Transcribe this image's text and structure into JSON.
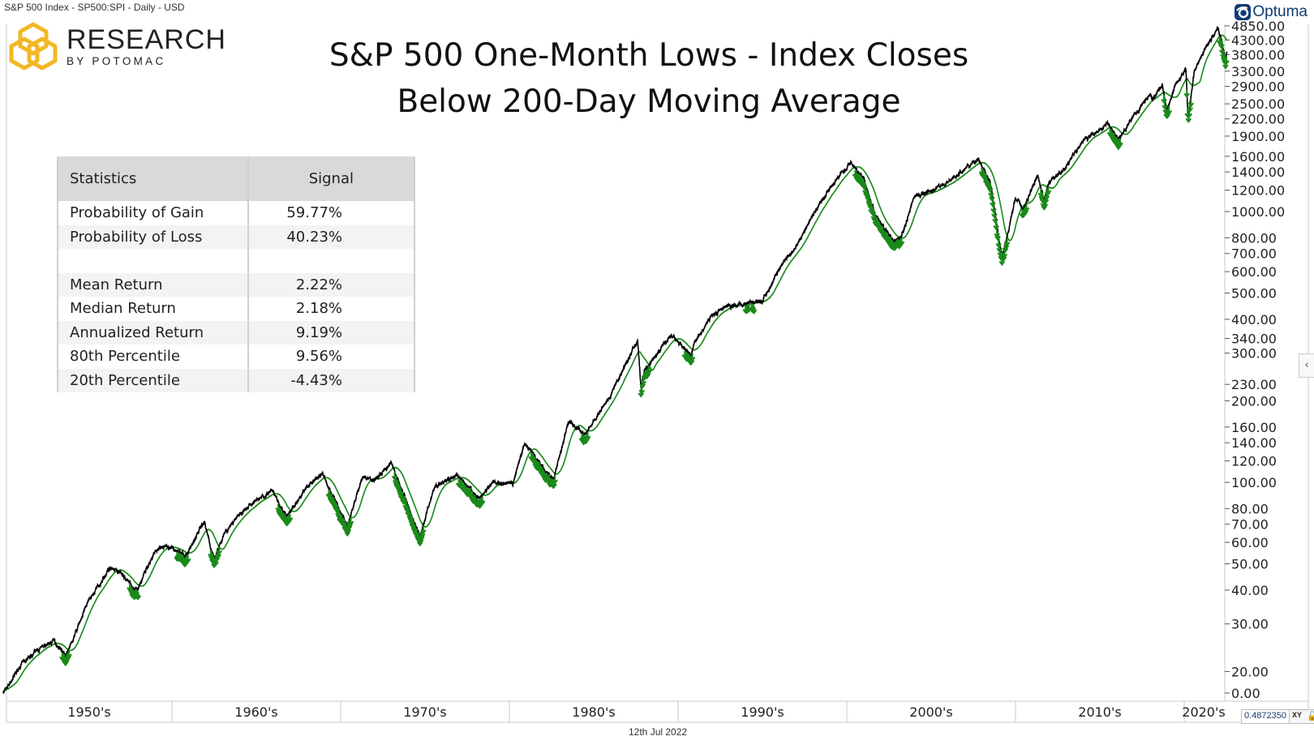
{
  "header": {
    "instrument": "S&P 500 Index  - SP500:SPI - Daily - USD",
    "date_label": "12th Jul 2022",
    "coord_value": "0.4872350",
    "coord_mode": "XY"
  },
  "brand": {
    "name": "RESEARCH",
    "sub": "BY POTOMAC",
    "platform": "Optuma",
    "logo_color": "#F2B824",
    "platform_color": "#0e3a75"
  },
  "chart_data": {
    "type": "line",
    "title_lines": [
      "S&P 500 One-Month Lows - Index Closes",
      "Below 200-Day Moving Average"
    ],
    "yscale": "log",
    "ylim": [
      16.6,
      5000
    ],
    "y_ticks": [
      4850,
      4300,
      3800,
      3300,
      2900,
      2500,
      2200,
      1900,
      1600,
      1400,
      1200,
      1000,
      800,
      700,
      600,
      500,
      400,
      340,
      300,
      230,
      200,
      160,
      140,
      120,
      100,
      80,
      70,
      60,
      50,
      40,
      30,
      20
    ],
    "y_tick_labels": [
      "4850.00",
      "4300.00",
      "3800.00",
      "3300.00",
      "2900.00",
      "2500.00",
      "2200.00",
      "1900.00",
      "1600.00",
      "1400.00",
      "1200.00",
      "1000.00",
      "800.00",
      "700.00",
      "600.00",
      "500.00",
      "400.00",
      "340.00",
      "300.00",
      "230.00",
      "200.00",
      "160.00",
      "140.00",
      "120.00",
      "100.00",
      "80.00",
      "70.00",
      "60.00",
      "50.00",
      "40.00",
      "30.00",
      "20.00"
    ],
    "y_floor_label": "0.00",
    "x_categories": [
      "1950's",
      "1960's",
      "1970's",
      "1980's",
      "1990's",
      "2000's",
      "2010's",
      "2020's"
    ],
    "xlim": [
      1950,
      2022.53
    ],
    "grid": false,
    "colors": {
      "price": "#000000",
      "moving_average": "#1a8a1a",
      "signal": "#1a8a1a"
    },
    "price_series": [
      [
        1950.0,
        16.7
      ],
      [
        1950.5,
        18.5
      ],
      [
        1951,
        21
      ],
      [
        1952,
        24
      ],
      [
        1953,
        26
      ],
      [
        1953.7,
        23
      ],
      [
        1954,
        25
      ],
      [
        1955,
        36
      ],
      [
        1956.3,
        48
      ],
      [
        1957,
        46
      ],
      [
        1957.8,
        40
      ],
      [
        1958,
        41
      ],
      [
        1959,
        56
      ],
      [
        1960,
        58
      ],
      [
        1960.8,
        53
      ],
      [
        1961.9,
        72
      ],
      [
        1962.5,
        52
      ],
      [
        1963,
        63
      ],
      [
        1964,
        76
      ],
      [
        1965,
        86
      ],
      [
        1966,
        93
      ],
      [
        1966.8,
        74
      ],
      [
        1968,
        96
      ],
      [
        1968.9,
        108
      ],
      [
        1970.4,
        69
      ],
      [
        1971.3,
        104
      ],
      [
        1972,
        102
      ],
      [
        1973,
        118
      ],
      [
        1974.7,
        63
      ],
      [
        1975.5,
        95
      ],
      [
        1976.9,
        107
      ],
      [
        1978.2,
        87
      ],
      [
        1979,
        100
      ],
      [
        1980.2,
        98
      ],
      [
        1980.9,
        140
      ],
      [
        1982.6,
        102
      ],
      [
        1983.5,
        168
      ],
      [
        1984.5,
        150
      ],
      [
        1985,
        167
      ],
      [
        1986,
        210
      ],
      [
        1987.6,
        336
      ],
      [
        1987.8,
        224
      ],
      [
        1988,
        257
      ],
      [
        1989.6,
        350
      ],
      [
        1990.8,
        295
      ],
      [
        1991,
        330
      ],
      [
        1992,
        415
      ],
      [
        1993,
        450
      ],
      [
        1994,
        460
      ],
      [
        1995,
        470
      ],
      [
        1996,
        615
      ],
      [
        1997,
        740
      ],
      [
        1998,
        970
      ],
      [
        1999,
        1230
      ],
      [
        2000.2,
        1520
      ],
      [
        2001,
        1320
      ],
      [
        2001.7,
        965
      ],
      [
        2002.8,
        776
      ],
      [
        2003.2,
        800
      ],
      [
        2004,
        1130
      ],
      [
        2005,
        1200
      ],
      [
        2006,
        1280
      ],
      [
        2007.8,
        1565
      ],
      [
        2008.5,
        1280
      ],
      [
        2009.2,
        676
      ],
      [
        2010,
        1115
      ],
      [
        2010.5,
        1030
      ],
      [
        2011.3,
        1360
      ],
      [
        2011.7,
        1100
      ],
      [
        2012,
        1280
      ],
      [
        2013,
        1460
      ],
      [
        2014,
        1830
      ],
      [
        2015.5,
        2100
      ],
      [
        2016.1,
        1860
      ],
      [
        2017,
        2270
      ],
      [
        2018,
        2700
      ],
      [
        2018.1,
        2580
      ],
      [
        2018.7,
        2930
      ],
      [
        2018.97,
        2350
      ],
      [
        2019.5,
        2980
      ],
      [
        2020.1,
        3380
      ],
      [
        2020.22,
        2240
      ],
      [
        2020.6,
        3300
      ],
      [
        2021,
        3750
      ],
      [
        2022.0,
        4790
      ],
      [
        2022.45,
        3670
      ],
      [
        2022.53,
        3820
      ]
    ],
    "moving_average_days": 200,
    "signal_periods": [
      [
        1953.5,
        1954.0
      ],
      [
        1957.5,
        1958.0
      ],
      [
        1960.3,
        1961.0
      ],
      [
        1962.3,
        1962.8
      ],
      [
        1966.3,
        1967.0
      ],
      [
        1969.3,
        1970.7
      ],
      [
        1973.2,
        1975.0
      ],
      [
        1977.0,
        1978.4
      ],
      [
        1981.3,
        1982.8
      ],
      [
        1984.3,
        1984.8
      ],
      [
        1987.8,
        1988.3
      ],
      [
        1990.4,
        1991.0
      ],
      [
        1994.0,
        1994.5
      ],
      [
        1998.6,
        1998.8
      ],
      [
        2000.5,
        2003.3
      ],
      [
        2008.0,
        2009.5
      ],
      [
        2010.4,
        2010.8
      ],
      [
        2011.5,
        2012.0
      ],
      [
        2015.6,
        2016.2
      ],
      [
        2018.8,
        2019.1
      ],
      [
        2020.15,
        2020.4
      ],
      [
        2022.1,
        2022.5
      ]
    ]
  },
  "table": {
    "headers": [
      "Statistics",
      "Signal"
    ],
    "rows": [
      [
        "Probability of Gain",
        "59.77%"
      ],
      [
        "Probability of Loss",
        "40.23%"
      ],
      [
        "",
        ""
      ],
      [
        "Mean Return",
        "2.22%"
      ],
      [
        "Median Return",
        "2.18%"
      ],
      [
        "Annualized Return",
        "9.19%"
      ],
      [
        "80th Percentile",
        "9.56%"
      ],
      [
        "20th Percentile",
        "-4.43%"
      ]
    ]
  }
}
